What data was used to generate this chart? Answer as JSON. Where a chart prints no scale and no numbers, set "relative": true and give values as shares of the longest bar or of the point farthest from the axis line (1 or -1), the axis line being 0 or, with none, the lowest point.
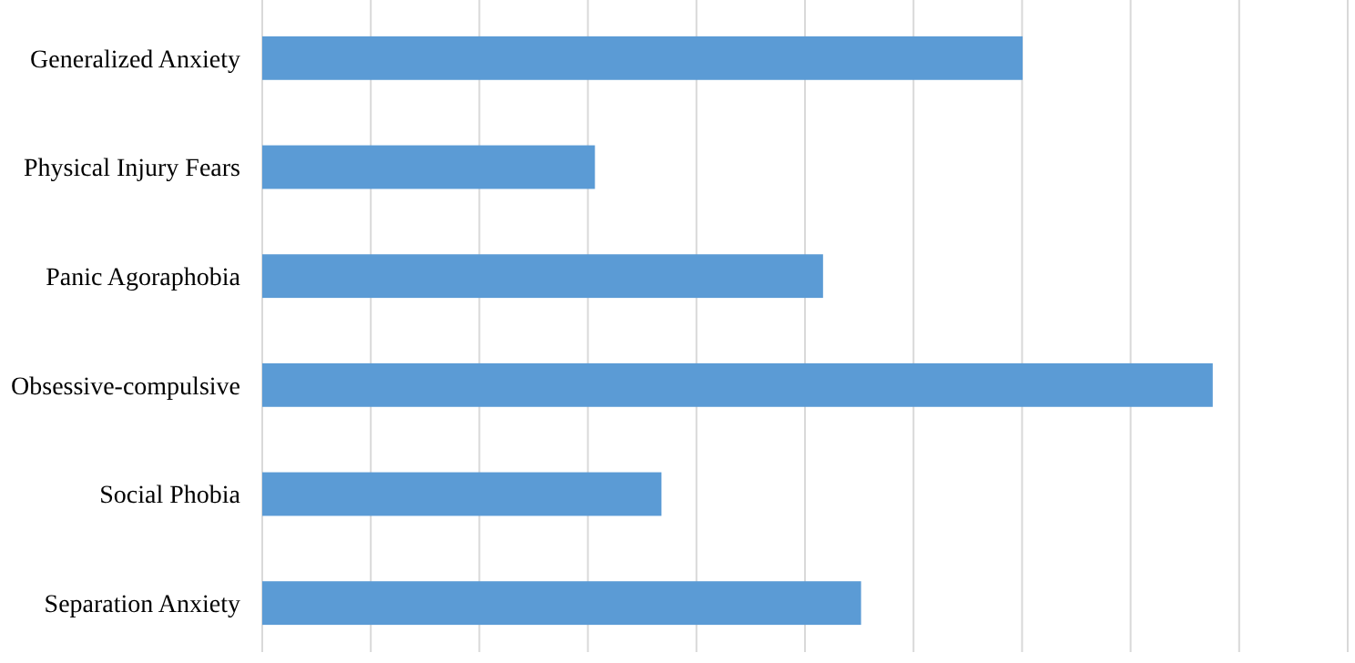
{
  "chart_data": {
    "type": "bar",
    "orientation": "horizontal",
    "relative": true,
    "categories": [
      "Generalized Anxiety",
      "Physical Injury Fears",
      "Panic Agoraphobia",
      "Obsessive-compulsive",
      "Social Phobia",
      "Separation Anxiety"
    ],
    "values": [
      0.8,
      0.35,
      0.59,
      1,
      0.42,
      0.63
    ],
    "color": "#5b9bd5",
    "grid": "x"
  }
}
